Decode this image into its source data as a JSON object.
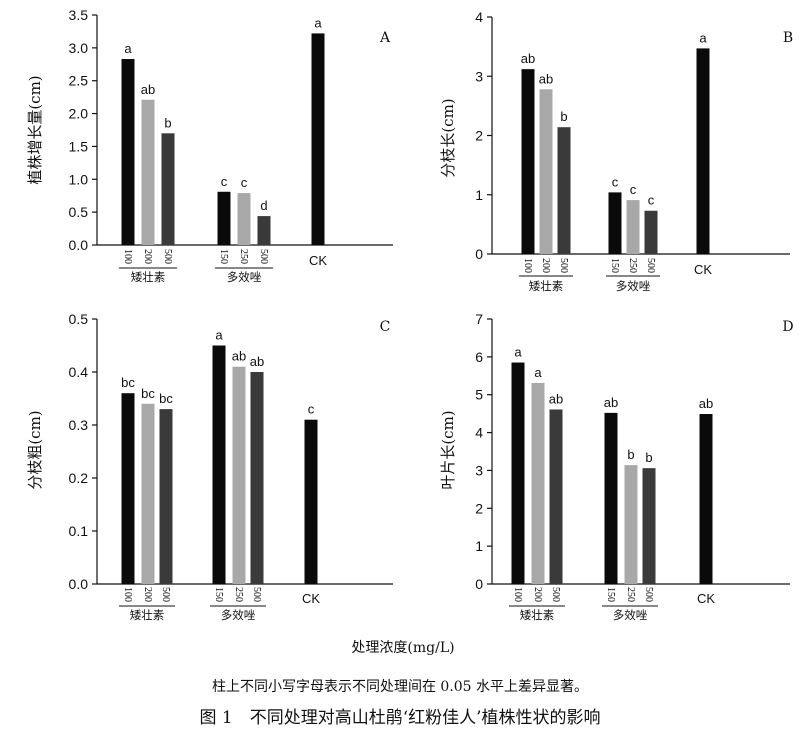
{
  "chart_data": [
    {
      "panel": "A",
      "type": "bar",
      "ylabel": "植株增长量(cm)",
      "ylim": [
        0,
        3.5
      ],
      "yticks": [
        "0.0",
        "0.5",
        "1.0",
        "1.5",
        "2.0",
        "2.5",
        "3.0",
        "3.5"
      ],
      "groups": [
        {
          "name": "矮壮素",
          "concentrations": [
            "100",
            "200",
            "500"
          ],
          "values": [
            2.83,
            2.21,
            1.7
          ],
          "letters": [
            "a",
            "ab",
            "b"
          ]
        },
        {
          "name": "多效唑",
          "concentrations": [
            "150",
            "250",
            "500"
          ],
          "values": [
            0.81,
            0.79,
            0.44
          ],
          "letters": [
            "c",
            "c",
            "d"
          ]
        },
        {
          "name": "CK",
          "concentrations": [],
          "values": [
            3.22
          ],
          "letters": [
            "a"
          ]
        }
      ]
    },
    {
      "panel": "B",
      "type": "bar",
      "ylabel": "分枝长(cm)",
      "ylim": [
        0,
        4
      ],
      "yticks": [
        "0",
        "1",
        "2",
        "3",
        "4"
      ],
      "groups": [
        {
          "name": "矮壮素",
          "concentrations": [
            "100",
            "200",
            "500"
          ],
          "values": [
            3.12,
            2.78,
            2.14
          ],
          "letters": [
            "ab",
            "ab",
            "b"
          ]
        },
        {
          "name": "多效唑",
          "concentrations": [
            "150",
            "250",
            "500"
          ],
          "values": [
            1.04,
            0.91,
            0.73
          ],
          "letters": [
            "c",
            "c",
            "c"
          ]
        },
        {
          "name": "CK",
          "concentrations": [],
          "values": [
            3.47
          ],
          "letters": [
            "a"
          ]
        }
      ]
    },
    {
      "panel": "C",
      "type": "bar",
      "ylabel": "分枝粗(cm)",
      "ylim": [
        0,
        0.5
      ],
      "yticks": [
        "0.0",
        "0.1",
        "0.2",
        "0.3",
        "0.4",
        "0.5"
      ],
      "groups": [
        {
          "name": "矮壮素",
          "concentrations": [
            "100",
            "200",
            "500"
          ],
          "values": [
            0.36,
            0.34,
            0.33
          ],
          "letters": [
            "bc",
            "bc",
            "bc"
          ]
        },
        {
          "name": "多效唑",
          "concentrations": [
            "150",
            "250",
            "500"
          ],
          "values": [
            0.45,
            0.41,
            0.4
          ],
          "letters": [
            "a",
            "ab",
            "ab"
          ]
        },
        {
          "name": "CK",
          "concentrations": [],
          "values": [
            0.31
          ],
          "letters": [
            "c"
          ]
        }
      ]
    },
    {
      "panel": "D",
      "type": "bar",
      "ylabel": "叶片长(cm)",
      "ylim": [
        0,
        7
      ],
      "yticks": [
        "0",
        "1",
        "2",
        "3",
        "4",
        "5",
        "6",
        "7"
      ],
      "groups": [
        {
          "name": "矮壮素",
          "concentrations": [
            "100",
            "200",
            "500"
          ],
          "values": [
            5.85,
            5.31,
            4.61
          ],
          "letters": [
            "a",
            "a",
            "ab"
          ]
        },
        {
          "name": "多效唑",
          "concentrations": [
            "150",
            "250",
            "500"
          ],
          "values": [
            4.52,
            3.14,
            3.06
          ],
          "letters": [
            "ab",
            "b",
            "b"
          ]
        },
        {
          "name": "CK",
          "concentrations": [],
          "values": [
            4.49
          ],
          "letters": [
            "ab"
          ]
        }
      ]
    }
  ],
  "bar_colors": [
    "#0a0a0a",
    "#a8a8a8",
    "#3a3a3a"
  ],
  "xlabel": "处理浓度(mg/L)",
  "note": "柱上不同小写字母表示不同处理间在 0.05 水平上差异显著。",
  "caption": "图 1　不同处理对高山杜鹃‘红粉佳人’植株性状的影响"
}
